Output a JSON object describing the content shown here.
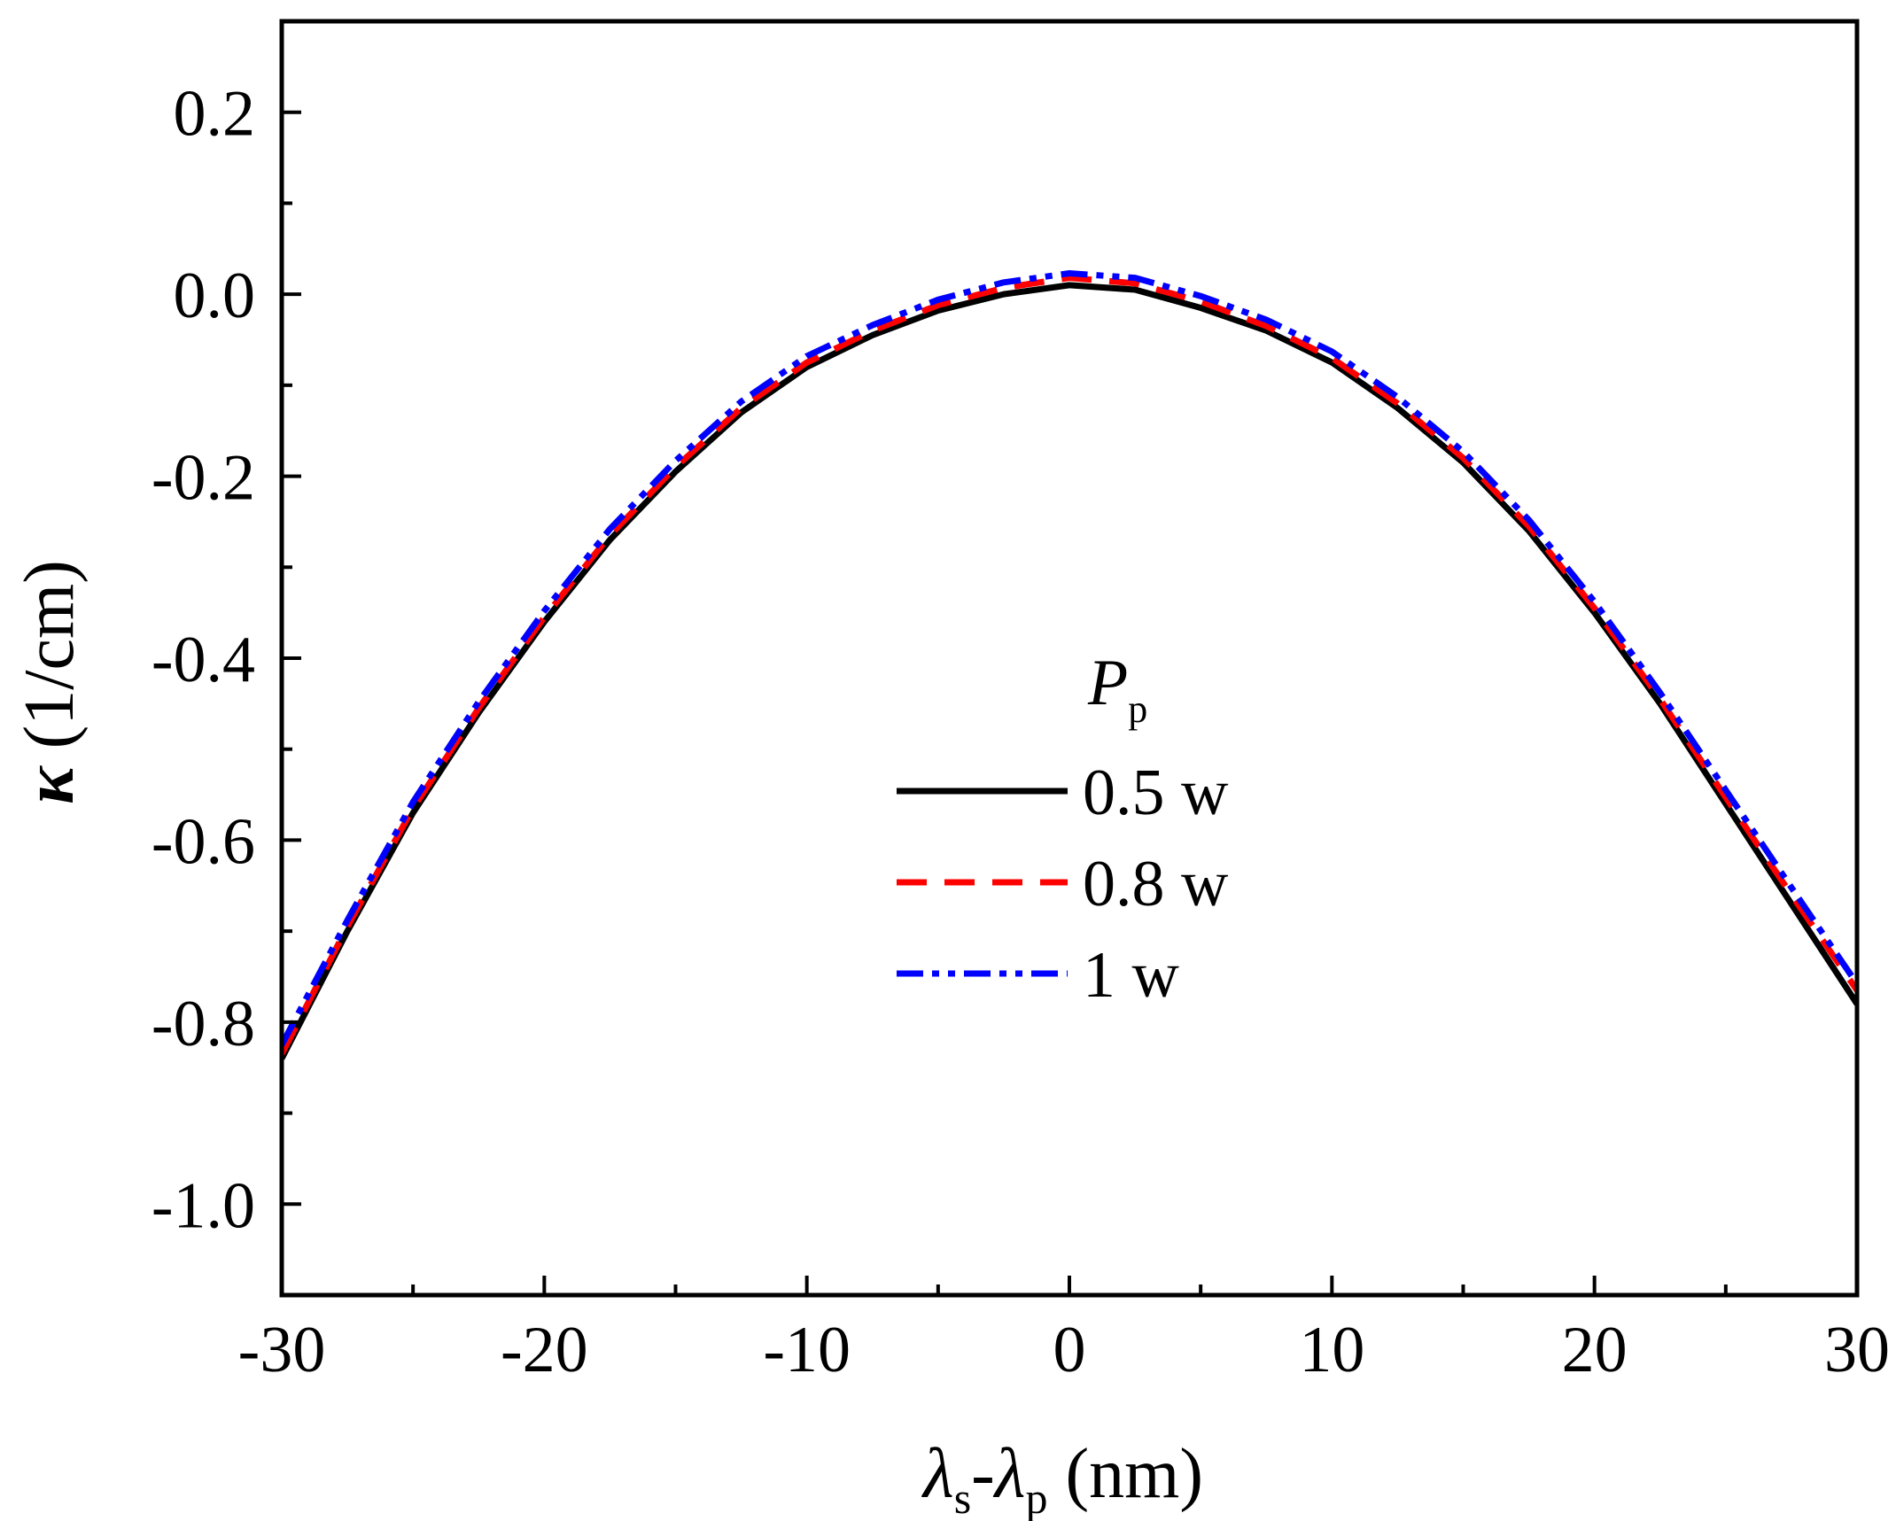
{
  "chart_data": {
    "type": "line",
    "xlabel": {
      "main1": "λ",
      "sub1": "s",
      "mid": "-",
      "main2": "λ",
      "sub2": "p",
      "tail": " (nm)"
    },
    "ylabel": {
      "symbol": "κ",
      "unit": " (1/cm)"
    },
    "xlim": [
      -30,
      30
    ],
    "ylim": [
      -1.1,
      0.3
    ],
    "xticks": [
      -30,
      -20,
      -10,
      0,
      10,
      20,
      30
    ],
    "xtick_labels": [
      "-30",
      "-20",
      "-10",
      "0",
      "10",
      "20",
      "30"
    ],
    "yticks": [
      0.2,
      0.0,
      -0.2,
      -0.4,
      -0.6,
      -0.8,
      -1.0
    ],
    "ytick_labels": [
      "0.2",
      "0.0",
      "-0.2",
      "-0.4",
      "-0.6",
      "-0.8",
      "-1.0"
    ],
    "grid": false,
    "legend": {
      "title_main": "P",
      "title_sub": "p",
      "placement": "center-right"
    },
    "series": [
      {
        "name": "0.5 w",
        "color": "#000000",
        "style": "solid",
        "x": [
          -30,
          -27.5,
          -25,
          -22.5,
          -20,
          -17.5,
          -15,
          -12.5,
          -10,
          -7.5,
          -5,
          -2.5,
          0,
          2.5,
          5,
          7.5,
          10,
          12.5,
          15,
          17.5,
          20,
          22.5,
          25,
          27.5,
          30
        ],
        "y": [
          -0.84,
          -0.7,
          -0.57,
          -0.46,
          -0.36,
          -0.27,
          -0.195,
          -0.13,
          -0.08,
          -0.045,
          -0.018,
          0.0,
          0.01,
          0.005,
          -0.015,
          -0.04,
          -0.075,
          -0.125,
          -0.185,
          -0.26,
          -0.35,
          -0.45,
          -0.56,
          -0.67,
          -0.78
        ]
      },
      {
        "name": "0.8 w",
        "color": "#ff0000",
        "style": "dashed",
        "x": [
          -30,
          -27.5,
          -25,
          -22.5,
          -20,
          -17.5,
          -15,
          -12.5,
          -10,
          -7.5,
          -5,
          -2.5,
          0,
          2.5,
          5,
          7.5,
          10,
          12.5,
          15,
          17.5,
          20,
          22.5,
          25,
          27.5,
          30
        ],
        "y": [
          -0.835,
          -0.695,
          -0.565,
          -0.455,
          -0.355,
          -0.265,
          -0.19,
          -0.125,
          -0.075,
          -0.04,
          -0.012,
          0.007,
          0.018,
          0.012,
          -0.008,
          -0.035,
          -0.07,
          -0.12,
          -0.18,
          -0.255,
          -0.345,
          -0.445,
          -0.553,
          -0.66,
          -0.765
        ]
      },
      {
        "name": "1 w",
        "color": "#0000ff",
        "style": "dashdotdot",
        "x": [
          -30,
          -27.5,
          -25,
          -22.5,
          -20,
          -17.5,
          -15,
          -12.5,
          -10,
          -7.5,
          -5,
          -2.5,
          0,
          2.5,
          5,
          7.5,
          10,
          12.5,
          15,
          17.5,
          20,
          22.5,
          25,
          27.5,
          30
        ],
        "y": [
          -0.825,
          -0.688,
          -0.558,
          -0.448,
          -0.348,
          -0.258,
          -0.183,
          -0.118,
          -0.068,
          -0.034,
          -0.006,
          0.013,
          0.023,
          0.018,
          -0.002,
          -0.028,
          -0.063,
          -0.113,
          -0.173,
          -0.248,
          -0.338,
          -0.438,
          -0.545,
          -0.652,
          -0.758
        ]
      }
    ]
  }
}
